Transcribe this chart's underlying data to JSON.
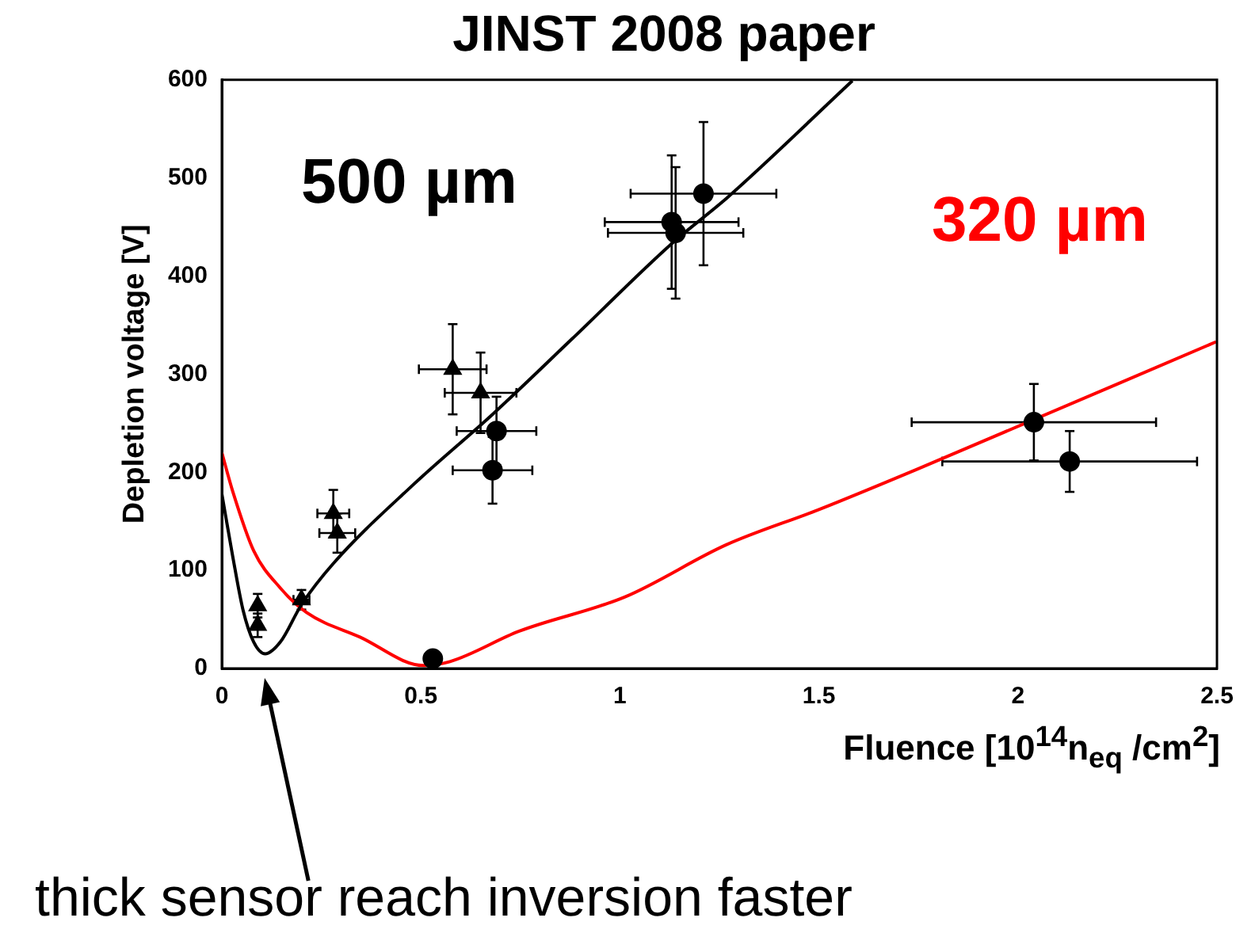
{
  "chart_data": {
    "type": "scatter",
    "title": "JINST 2008 paper",
    "xlabel": "Fluence [10$^{14}$n$_{eq}$ /cm$^{2}$]",
    "ylabel": "Depletion voltage [V]",
    "xlim": [
      0,
      2.5
    ],
    "xticks": [
      0,
      0.5,
      1,
      1.5,
      2,
      2.5
    ],
    "ylim": [
      0,
      600
    ],
    "yticks": [
      0,
      100,
      200,
      300,
      400,
      500,
      600
    ],
    "grid": false,
    "legend": false,
    "annotations": [
      "thick sensor reach inversion faster"
    ],
    "series": [
      {
        "marker": "triangle",
        "color": "#000000",
        "x": [
          0.09,
          0.09,
          0.2,
          0.28,
          0.29,
          0.58,
          0.65
        ],
        "values": [
          64,
          44,
          70,
          158,
          138,
          305,
          281
        ],
        "errors": [
          12,
          12,
          10,
          24,
          20,
          46,
          41
        ],
        "xerrors": [
          null,
          null,
          0.02,
          0.04,
          0.045,
          0.085,
          0.09
        ]
      },
      {
        "marker": "circle",
        "color": "#000000",
        "x": [
          0.53,
          0.69,
          0.68,
          1.13,
          1.14,
          1.21,
          2.04,
          2.13
        ],
        "values": [
          10,
          242,
          202,
          455,
          444,
          484,
          251,
          211
        ],
        "errors": [
          null,
          35,
          34,
          68,
          67,
          73,
          39,
          31
        ],
        "xerrors": [
          null,
          0.1,
          0.1,
          0.168,
          0.17,
          0.183,
          0.307,
          0.32
        ]
      },
      {
        "type": "line",
        "name": "500 µm",
        "marker": "none",
        "line_style": "solid",
        "color": "#000000",
        "x": [
          0,
          0.027,
          0.053,
          0.08,
          0.109,
          0.147,
          0.2,
          0.28,
          0.48,
          0.68,
          0.88,
          1.13,
          1.27,
          1.584
        ],
        "values": [
          178,
          115,
          60,
          27,
          15,
          27,
          65,
          107,
          187,
          259,
          336,
          433,
          480,
          599
        ]
      },
      {
        "type": "line",
        "name": "320 µm",
        "marker": "none",
        "line_style": "solid",
        "color": "#ff0000",
        "x": [
          0,
          0.027,
          0.08,
          0.147,
          0.213,
          0.347,
          0.507,
          0.573,
          0.747,
          1.013,
          1.267,
          1.5,
          1.746,
          2.498
        ],
        "values": [
          220,
          181,
          120,
          82,
          57,
          32,
          3,
          7,
          38,
          73,
          126,
          162,
          203,
          333
        ]
      }
    ]
  }
}
